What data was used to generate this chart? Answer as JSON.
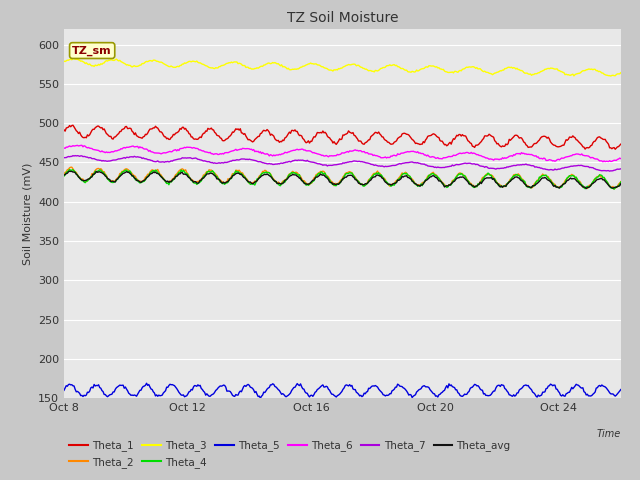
{
  "title": "TZ Soil Moisture",
  "ylabel": "Soil Moisture (mV)",
  "ylim": [
    150,
    620
  ],
  "fig_bg": "#c8c8c8",
  "plot_bg": "#e8e8e8",
  "legend_label": "TZ_sm",
  "num_points": 500,
  "days": 18,
  "series": [
    {
      "name": "Theta_3",
      "color": "#ffff00",
      "base": 578,
      "trend": -14,
      "amp": 4,
      "freq": 14,
      "noise": 0.5
    },
    {
      "name": "Theta_1",
      "color": "#dd0000",
      "base": 490,
      "trend": -16,
      "amp": 7,
      "freq": 20,
      "noise": 1.0
    },
    {
      "name": "Theta_6",
      "color": "#ff00ff",
      "base": 468,
      "trend": -13,
      "amp": 4,
      "freq": 10,
      "noise": 0.5
    },
    {
      "name": "Theta_7",
      "color": "#aa00dd",
      "base": 456,
      "trend": -14,
      "amp": 3,
      "freq": 10,
      "noise": 0.3
    },
    {
      "name": "Theta_2",
      "color": "#ff8800",
      "base": 435,
      "trend": -10,
      "amp": 8,
      "freq": 20,
      "noise": 0.8
    },
    {
      "name": "Theta_4",
      "color": "#00dd00",
      "base": 433,
      "trend": -8,
      "amp": 8,
      "freq": 20,
      "noise": 0.8
    },
    {
      "name": "Theta_avg",
      "color": "#111111",
      "base": 433,
      "trend": -10,
      "amp": 6,
      "freq": 20,
      "noise": 0.6
    },
    {
      "name": "Theta_5",
      "color": "#0000dd",
      "base": 160,
      "trend": 0,
      "amp": 7,
      "freq": 22,
      "noise": 1.0
    }
  ],
  "xtick_labels": [
    "Oct 8",
    "Oct 12",
    "Oct 16",
    "Oct 20",
    "Oct 24"
  ],
  "xtick_positions": [
    0,
    4,
    8,
    12,
    16
  ],
  "yticks": [
    150,
    200,
    250,
    300,
    350,
    400,
    450,
    500,
    550,
    600
  ],
  "legend_row1": [
    [
      "Theta_1",
      "#dd0000"
    ],
    [
      "Theta_2",
      "#ff8800"
    ],
    [
      "Theta_3",
      "#ffff00"
    ],
    [
      "Theta_4",
      "#00dd00"
    ],
    [
      "Theta_5",
      "#0000dd"
    ],
    [
      "Theta_6",
      "#ff00ff"
    ]
  ],
  "legend_row2": [
    [
      "Theta_7",
      "#aa00dd"
    ],
    [
      "Theta_avg",
      "#111111"
    ]
  ]
}
